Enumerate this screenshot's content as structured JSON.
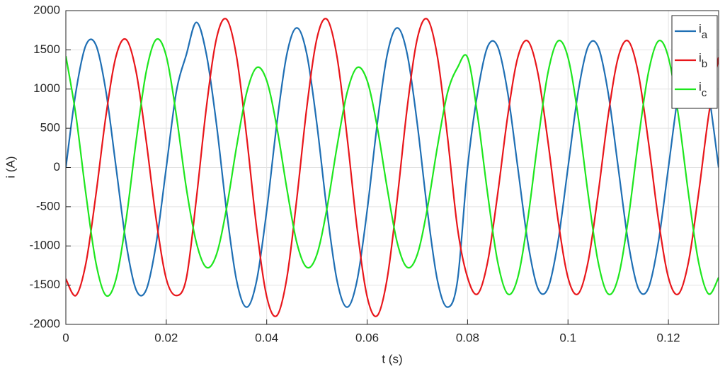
{
  "chart_data": {
    "type": "line",
    "xlabel": "t (s)",
    "ylabel": "i (A)",
    "xlim": [
      0,
      0.13
    ],
    "xticks": [
      0,
      0.02,
      0.04,
      0.06,
      0.08,
      0.1,
      0.12
    ],
    "ylim": [
      -2000,
      2000
    ],
    "yticks": [
      -2000,
      -1500,
      -1000,
      -500,
      0,
      500,
      1000,
      1500,
      2000
    ],
    "grid": true,
    "legend": "upper right",
    "x": [
      0,
      0.002,
      0.004,
      0.006,
      0.008,
      0.01,
      0.012,
      0.014,
      0.016,
      0.018,
      0.02,
      0.022,
      0.024,
      0.026,
      0.028,
      0.03,
      0.032,
      0.034,
      0.036,
      0.038,
      0.04,
      0.042,
      0.044,
      0.046,
      0.048,
      0.05,
      0.052,
      0.054,
      0.056,
      0.058,
      0.06,
      0.062,
      0.064,
      0.066,
      0.068,
      0.07,
      0.072,
      0.074,
      0.076,
      0.078,
      0.08,
      0.082,
      0.084,
      0.086,
      0.088,
      0.09,
      0.092,
      0.094,
      0.096,
      0.098,
      0.1,
      0.102,
      0.104,
      0.106,
      0.108,
      0.11,
      0.112,
      0.114,
      0.116,
      0.118,
      0.12,
      0.122,
      0.124,
      0.126,
      0.128,
      0.13
    ],
    "series": [
      {
        "name": "ia",
        "color": "#1f6fb4",
        "values": [
          0,
          964,
          1560,
          1560,
          964,
          0,
          -964,
          -1560,
          -1560,
          -964,
          0,
          964,
          1440,
          1850,
          1440,
          550,
          -550,
          -1440,
          -1780,
          -1440,
          -550,
          550,
          1440,
          1780,
          1440,
          550,
          -550,
          -1440,
          -1780,
          -1440,
          -550,
          550,
          1440,
          1780,
          1440,
          550,
          -550,
          -1440,
          -1780,
          -1440,
          0,
          952,
          1541,
          1541,
          952,
          0,
          -952,
          -1541,
          -1541,
          -952,
          0,
          952,
          1541,
          1541,
          952,
          0,
          -952,
          -1541,
          -1541,
          -952,
          0,
          952,
          1541,
          1541,
          952,
          0
        ]
      },
      {
        "name": "ib",
        "color": "#e8161b",
        "values": [
          -1420,
          -1632,
          -1219,
          -341,
          667,
          1420,
          1632,
          1219,
          341,
          -667,
          -1420,
          -1632,
          -1412,
          -395,
          773,
          1645,
          1890,
          1412,
          395,
          -773,
          -1645,
          -1890,
          -1412,
          -395,
          773,
          1645,
          1890,
          1412,
          395,
          -773,
          -1645,
          -1890,
          -1412,
          -395,
          773,
          1645,
          1890,
          1412,
          395,
          -773,
          -1403,
          -1612,
          -1204,
          -337,
          659,
          1403,
          1612,
          1204,
          337,
          -659,
          -1403,
          -1612,
          -1204,
          -337,
          659,
          1403,
          1612,
          1204,
          337,
          -659,
          -1403,
          -1612,
          -1204,
          -337,
          659,
          1403
        ]
      },
      {
        "name": "ic",
        "color": "#1ee61e",
        "values": [
          1420,
          667,
          -341,
          -1219,
          -1632,
          -1420,
          -667,
          341,
          1219,
          1632,
          1420,
          667,
          -266,
          -960,
          -1274,
          -1108,
          -521,
          266,
          951,
          1274,
          1108,
          521,
          -266,
          -960,
          -1274,
          -1108,
          -521,
          266,
          951,
          1274,
          1108,
          521,
          -266,
          -960,
          -1274,
          -1108,
          -521,
          266,
          951,
          1274,
          1403,
          659,
          -337,
          -1204,
          -1612,
          -1403,
          -659,
          337,
          1204,
          1612,
          1403,
          659,
          -337,
          -1204,
          -1612,
          -1403,
          -659,
          337,
          1204,
          1612,
          1403,
          659,
          -337,
          -1204,
          -1612,
          -1403
        ]
      }
    ]
  }
}
